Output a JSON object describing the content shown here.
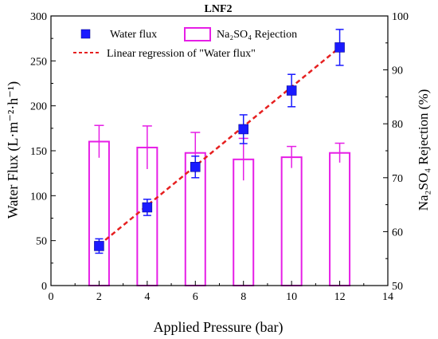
{
  "chart_data": {
    "type": "bar",
    "title": "LNF2",
    "xlabel": "Applied Pressure (bar)",
    "ylabel_left": "Water Flux (L·m⁻²·h⁻¹)",
    "ylabel_right": "Na₂SO₄ Rejection (%)",
    "xlim": [
      0,
      14
    ],
    "ylim_left": [
      0,
      300
    ],
    "ylim_right": [
      50,
      100
    ],
    "x_ticks": [
      0,
      2,
      4,
      6,
      8,
      10,
      12,
      14
    ],
    "y_ticks_left": [
      0,
      50,
      100,
      150,
      200,
      250,
      300
    ],
    "y_ticks_right": [
      50,
      60,
      70,
      80,
      90,
      100
    ],
    "grid": false,
    "legend_position": "top-left",
    "series": [
      {
        "name": "Water flux",
        "kind": "scatter",
        "axis": "left",
        "color": "#1a1aff",
        "x": [
          2,
          4,
          6,
          8,
          10,
          12
        ],
        "y": [
          44,
          87,
          132,
          174,
          217,
          265
        ],
        "err": [
          8,
          9,
          12,
          16,
          18,
          20
        ]
      },
      {
        "name": "Na₂SO₄ Rejection",
        "kind": "bar",
        "axis": "right",
        "color": "#e61ee6",
        "x": [
          2,
          4,
          6,
          8,
          10,
          12
        ],
        "y": [
          76.7,
          75.6,
          74.6,
          73.4,
          73.8,
          74.6
        ],
        "err": [
          3.0,
          4.0,
          3.8,
          3.9,
          2.0,
          1.8
        ]
      },
      {
        "name": "Linear regression of \"Water flux\"",
        "kind": "line",
        "axis": "left",
        "color": "#e62020",
        "x": [
          2,
          12
        ],
        "y": [
          45,
          265
        ]
      }
    ]
  }
}
